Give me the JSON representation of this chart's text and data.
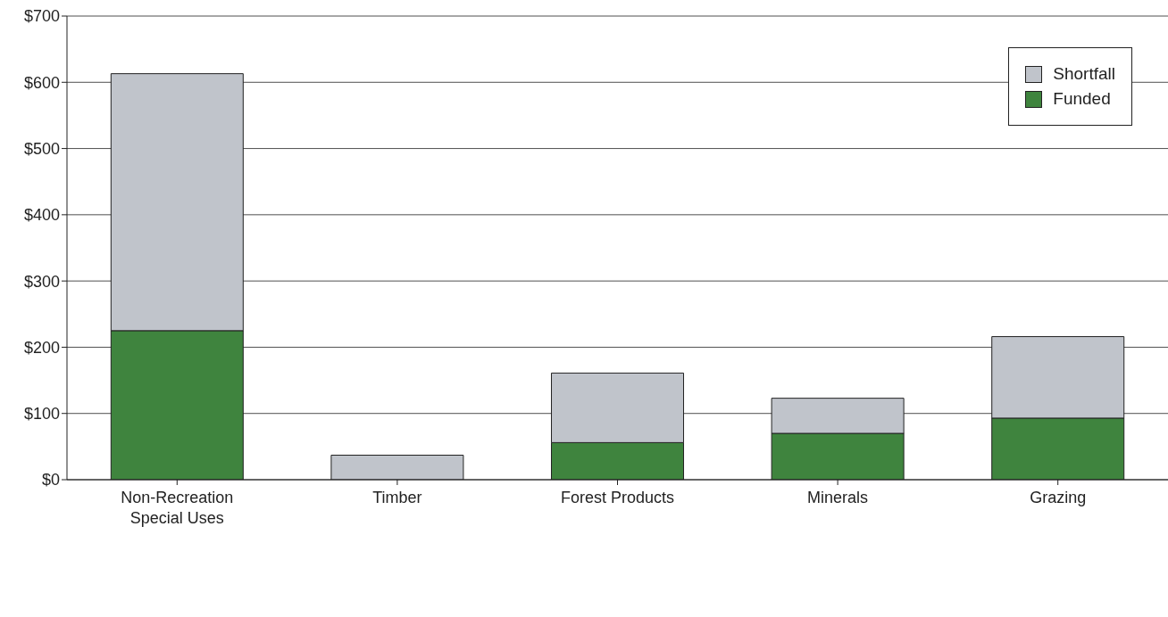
{
  "chart_data": {
    "type": "bar",
    "stacked": true,
    "categories": [
      "Non-Recreation Special Uses",
      "Timber",
      "Forest Products",
      "Minerals",
      "Grazing"
    ],
    "series": [
      {
        "name": "Funded",
        "color": "#3f843e",
        "values": [
          225,
          0,
          56,
          70,
          93
        ]
      },
      {
        "name": "Shortfall",
        "color": "#c0c4cb",
        "values": [
          388,
          37,
          105,
          53,
          123
        ]
      }
    ],
    "ylim": [
      0,
      700
    ],
    "yticks": [
      {
        "value": 0,
        "label": "$0"
      },
      {
        "value": 100,
        "label": "$100"
      },
      {
        "value": 200,
        "label": "$200"
      },
      {
        "value": 300,
        "label": "$300"
      },
      {
        "value": 400,
        "label": "$400"
      },
      {
        "value": 500,
        "label": "$500"
      },
      {
        "value": 600,
        "label": "$600"
      },
      {
        "value": 700,
        "label": "$700"
      }
    ],
    "grid": "y",
    "legend": "top right"
  }
}
